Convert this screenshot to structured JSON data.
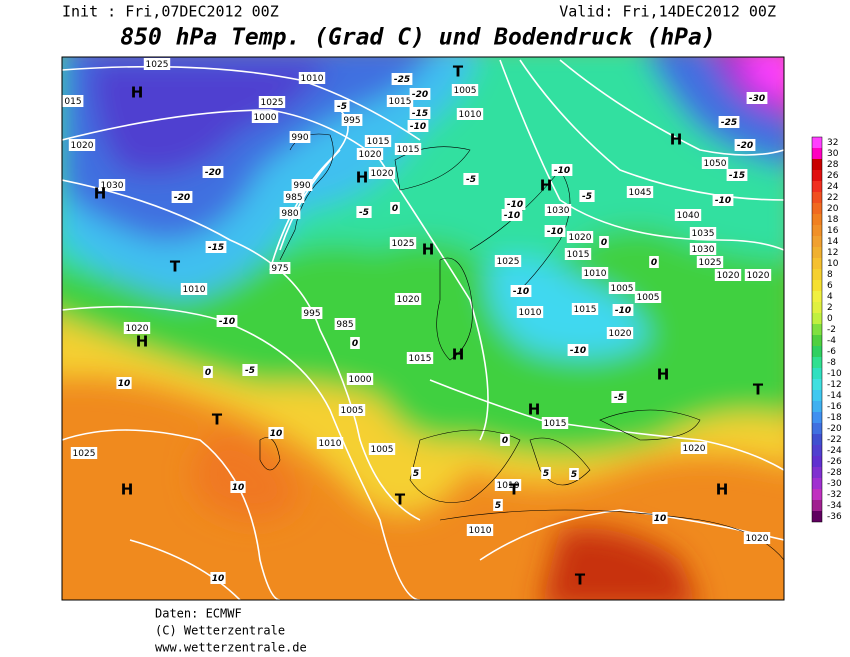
{
  "header": {
    "init": "Init : Fri,07DEC2012 00Z",
    "valid": "Valid: Fri,14DEC2012 00Z",
    "title": "850 hPa Temp. (Grad C) und Bodendruck (hPa)"
  },
  "footer": {
    "source": "Daten: ECMWF",
    "copyright": "(C) Wetterzentrale",
    "url": "www.wetterzentrale.de"
  },
  "colorbar": {
    "ticks": [
      32,
      30,
      28,
      26,
      24,
      22,
      20,
      18,
      16,
      14,
      12,
      10,
      8,
      6,
      4,
      2,
      0,
      -2,
      -4,
      -6,
      -8,
      -10,
      -12,
      -14,
      -16,
      -18,
      -20,
      -22,
      -24,
      -26,
      -28,
      -30,
      -32,
      -34,
      -36
    ],
    "colors": [
      "#ff40ff",
      "#ff00c0",
      "#c80000",
      "#e01010",
      "#f03020",
      "#f05020",
      "#f06a20",
      "#f08020",
      "#f09028",
      "#f0a030",
      "#f0b030",
      "#f5c030",
      "#f5d030",
      "#f5e030",
      "#f0f040",
      "#e0f040",
      "#c0f040",
      "#80e040",
      "#50d040",
      "#30d060",
      "#30e090",
      "#30e0c0",
      "#40e0e0",
      "#40c8f0",
      "#40b0f0",
      "#4090f0",
      "#4070e0",
      "#4050d0",
      "#5040d0",
      "#6030d0",
      "#8030d0",
      "#a030d0",
      "#c030c0",
      "#a02090",
      "#600060"
    ]
  },
  "map": {
    "isobar_labels": [
      "1025",
      "1010",
      "1025",
      "1000",
      "995",
      "990",
      "1015",
      "1020",
      "1015",
      "1020",
      "990",
      "985",
      "980",
      "975",
      "1005",
      "1010",
      "1015",
      "1020",
      "1030",
      "1025",
      "1020",
      "995",
      "985",
      "1000",
      "1005",
      "1010",
      "1005",
      "1015",
      "1030",
      "1025",
      "1020",
      "1015",
      "1010",
      "1005",
      "1005",
      "1015",
      "1010",
      "1020",
      "1015",
      "1020",
      "1050",
      "1045",
      "1040",
      "1035",
      "1030",
      "1025",
      "1020",
      "1020",
      "1010",
      "1020",
      "1025",
      "1010",
      "1010",
      "1020",
      "015"
    ],
    "temperature_labels": [
      "-25",
      "-20",
      "-15",
      "-10",
      "-5",
      "-30",
      "-25",
      "-20",
      "-15",
      "-10",
      "-20",
      "-20",
      "-15",
      "-10",
      "-5",
      "0",
      "10",
      "10",
      "10",
      "10",
      "10",
      "5",
      "5",
      "5",
      "5",
      "0",
      "0",
      "0",
      "-5",
      "-5",
      "-10",
      "-5",
      "-10",
      "-10",
      "-10",
      "0",
      "0",
      "-10",
      "-10",
      "-10",
      "-5"
    ],
    "pressure_centers": [
      "H",
      "T",
      "H",
      "H",
      "H",
      "H",
      "T",
      "H",
      "H",
      "H",
      "T",
      "H",
      "H",
      "T",
      "H",
      "T",
      "T",
      "H",
      "T"
    ]
  }
}
